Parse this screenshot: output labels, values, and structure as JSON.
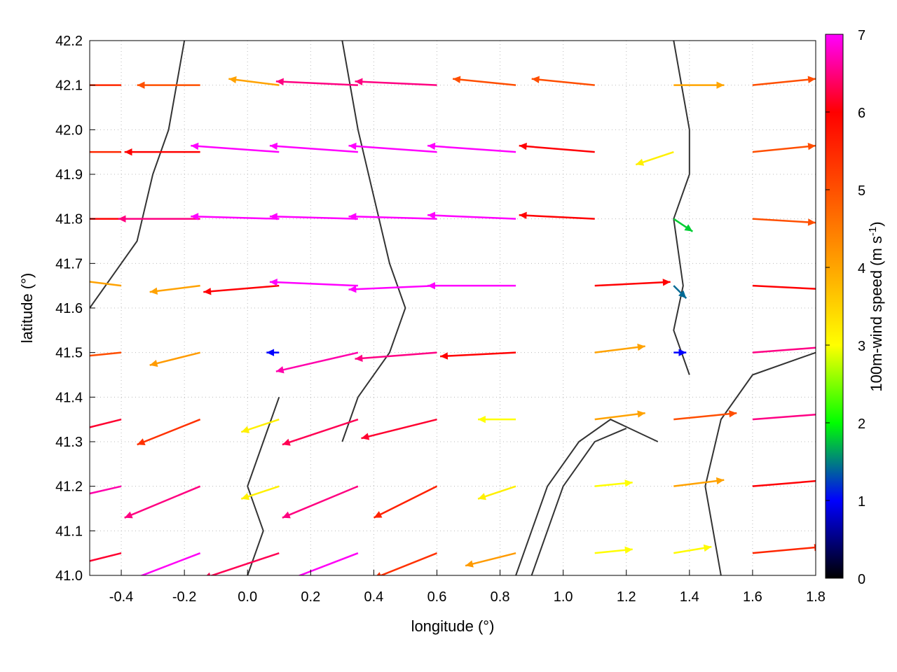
{
  "chart_data": {
    "type": "vector-field",
    "title": "",
    "xlabel": "longitude (°)",
    "ylabel": "latitude (°)",
    "xlim": [
      -0.5,
      1.8
    ],
    "ylim": [
      41.0,
      42.2
    ],
    "xticks": [
      "-0.4",
      "-0.2",
      "0.0",
      "0.2",
      "0.4",
      "0.6",
      "0.8",
      "1.0",
      "1.2",
      "1.4",
      "1.6",
      "1.8"
    ],
    "xtick_values": [
      -0.4,
      -0.2,
      0.0,
      0.2,
      0.4,
      0.6,
      0.8,
      1.0,
      1.2,
      1.4,
      1.6,
      1.8
    ],
    "yticks": [
      "41.0",
      "41.1",
      "41.2",
      "41.3",
      "41.4",
      "41.5",
      "41.6",
      "41.7",
      "41.8",
      "41.9",
      "42.0",
      "42.1",
      "42.2"
    ],
    "ytick_values": [
      41.0,
      41.1,
      41.2,
      41.3,
      41.4,
      41.5,
      41.6,
      41.7,
      41.8,
      41.9,
      42.0,
      42.1,
      42.2
    ],
    "grid": true,
    "colorbar": {
      "label": "100m-wind speed (m s",
      "label_sup": "-1",
      "label_end": ")",
      "range": [
        0,
        7
      ],
      "ticks": [
        "0",
        "1",
        "2",
        "3",
        "4",
        "5",
        "6",
        "7"
      ],
      "palette": [
        "#000000",
        "#0000ff",
        "#00ff00",
        "#ffff00",
        "#ffa500",
        "#ff5000",
        "#ff0000",
        "#ff00ff"
      ]
    },
    "vectors": {
      "lons": [
        -0.4,
        -0.15,
        0.1,
        0.35,
        0.6,
        0.85,
        1.1,
        1.35,
        1.6
      ],
      "lats": [
        41.05,
        41.2,
        41.35,
        41.5,
        41.65,
        41.8,
        41.95,
        42.1
      ],
      "u": [
        [
          -6,
          -6.5,
          -6,
          -6.5,
          -5,
          -4,
          3,
          3,
          5.5
        ],
        [
          -6.5,
          -6,
          -3,
          -6,
          -5,
          -3,
          3,
          4,
          6
        ],
        [
          -6,
          -5,
          -3,
          -6,
          -6,
          -3,
          4,
          5,
          6.5
        ],
        [
          -5,
          -4,
          -1,
          -6.5,
          -6.5,
          -6,
          4,
          1,
          6.5
        ],
        [
          -4,
          -4,
          -6,
          -7,
          -7,
          -7,
          6,
          1,
          6
        ],
        [
          -6,
          -6.5,
          -7,
          -7,
          -7,
          -7,
          -6,
          1.5,
          5
        ],
        [
          -5.5,
          -6,
          -7,
          -7,
          -7,
          -7,
          -6,
          -3,
          5
        ],
        [
          -5.5,
          -5,
          -4,
          -6.5,
          -6.5,
          -5,
          -5,
          4,
          5
        ]
      ],
      "v": [
        [
          -1.5,
          -2.5,
          -2,
          -2.5,
          -2,
          -1,
          0.3,
          0.5,
          0.5
        ],
        [
          -1.5,
          -2.5,
          -1,
          -2.5,
          -2.5,
          -1,
          0.3,
          0.5,
          0.5
        ],
        [
          -1.5,
          -2,
          -1,
          -2,
          -1.5,
          0,
          0.5,
          0.5,
          0.5
        ],
        [
          -0.5,
          -1,
          0,
          -1.5,
          -0.5,
          -0.3,
          0.5,
          0,
          0.5
        ],
        [
          0.5,
          -0.5,
          -0.5,
          0.3,
          -0.3,
          0,
          0.3,
          -1,
          -0.3
        ],
        [
          0,
          0,
          0.2,
          0.2,
          0.2,
          0.3,
          0.3,
          -1,
          -0.3
        ],
        [
          0,
          0,
          0.5,
          0.5,
          0.5,
          0.5,
          0.5,
          -1,
          0.5
        ],
        [
          0,
          0,
          0.5,
          0.3,
          0.3,
          0.5,
          0.5,
          0,
          0.5
        ]
      ]
    },
    "contours": [
      [
        [
          -0.2,
          42.2
        ],
        [
          -0.25,
          42.0
        ],
        [
          -0.3,
          41.9
        ],
        [
          -0.35,
          41.75
        ],
        [
          -0.45,
          41.65
        ],
        [
          -0.5,
          41.6
        ]
      ],
      [
        [
          0.3,
          42.2
        ],
        [
          0.35,
          42.0
        ],
        [
          0.4,
          41.85
        ],
        [
          0.45,
          41.7
        ],
        [
          0.5,
          41.6
        ],
        [
          0.45,
          41.5
        ],
        [
          0.35,
          41.4
        ],
        [
          0.3,
          41.3
        ]
      ],
      [
        [
          0.85,
          41.0
        ],
        [
          0.9,
          41.1
        ],
        [
          0.95,
          41.2
        ],
        [
          1.05,
          41.3
        ],
        [
          1.15,
          41.35
        ],
        [
          1.3,
          41.3
        ]
      ],
      [
        [
          0.9,
          41.0
        ],
        [
          0.95,
          41.1
        ],
        [
          1.0,
          41.2
        ],
        [
          1.1,
          41.3
        ],
        [
          1.2,
          41.33
        ]
      ],
      [
        [
          1.35,
          42.2
        ],
        [
          1.4,
          42.0
        ],
        [
          1.4,
          41.9
        ],
        [
          1.35,
          41.8
        ],
        [
          1.38,
          41.65
        ],
        [
          1.35,
          41.55
        ],
        [
          1.4,
          41.45
        ]
      ],
      [
        [
          0.0,
          41.0
        ],
        [
          0.05,
          41.1
        ],
        [
          0.0,
          41.2
        ],
        [
          0.05,
          41.3
        ],
        [
          0.1,
          41.4
        ]
      ],
      [
        [
          1.5,
          41.0
        ],
        [
          1.45,
          41.2
        ],
        [
          1.5,
          41.35
        ],
        [
          1.6,
          41.45
        ],
        [
          1.8,
          41.5
        ]
      ]
    ]
  }
}
